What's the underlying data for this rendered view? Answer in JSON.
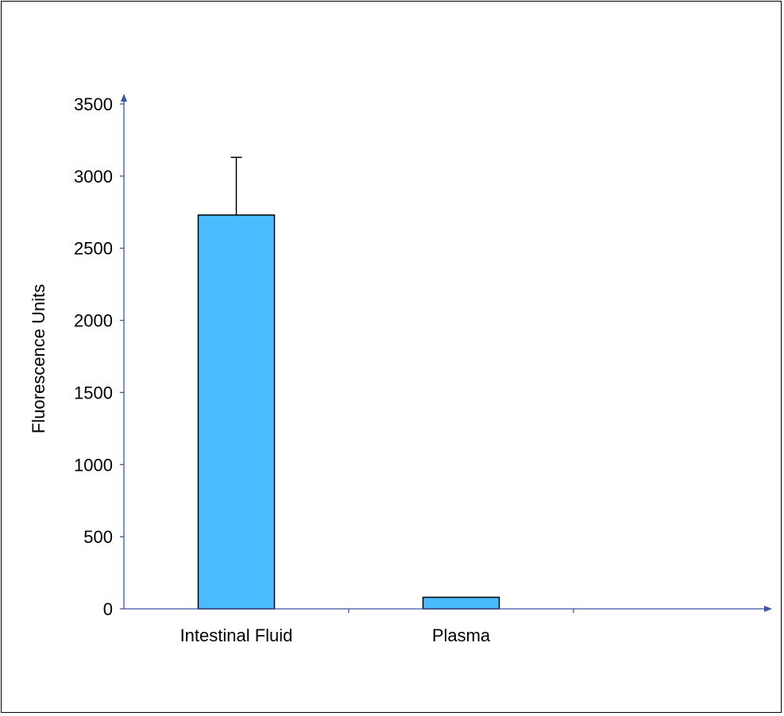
{
  "chart_data": {
    "type": "bar",
    "title": "",
    "xlabel": "",
    "ylabel": "Fluorescence Units",
    "categories": [
      "Intestinal Fluid",
      "Plasma"
    ],
    "values": [
      2730,
      80
    ],
    "error_bars": [
      400,
      0
    ],
    "ylim": [
      0,
      3500
    ],
    "yticks": [
      "0",
      "500",
      "1000",
      "1500",
      "2000",
      "2500",
      "3000",
      "3500"
    ],
    "grid": false,
    "legend": "none",
    "colors": {
      "bar_fill": "#4ABBFF",
      "bar_stroke": "#000000",
      "axis": "#3F56A0",
      "error_bar": "#000000"
    }
  }
}
